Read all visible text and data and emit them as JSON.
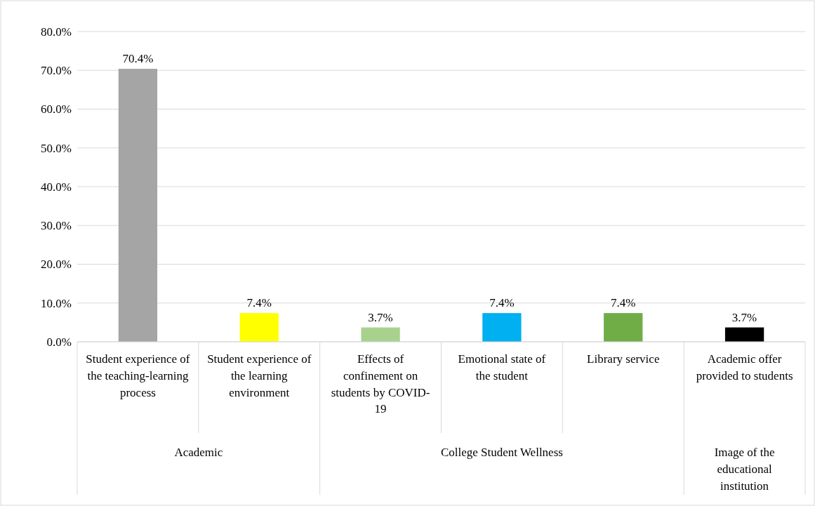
{
  "chart_data": {
    "type": "bar",
    "categories": [
      "Student experience of the teaching-learning process",
      "Student experience of the learning environment",
      "Effects of confinement on students by COVID-19",
      "Emotional state of the student",
      "Library service",
      "Academic offer provided to students"
    ],
    "values": [
      70.4,
      7.4,
      3.7,
      7.4,
      7.4,
      3.7
    ],
    "colors": [
      "#a5a5a5",
      "#ffff00",
      "#a9d18e",
      "#00b0f0",
      "#70ad47",
      "#000000"
    ],
    "value_labels": [
      "70.4%",
      "7.4%",
      "3.7%",
      "7.4%",
      "7.4%",
      "3.7%"
    ],
    "ylim": [
      0,
      80
    ],
    "yticks": [
      {
        "value": 0,
        "label": "0.0%"
      },
      {
        "value": 10,
        "label": "10.0%"
      },
      {
        "value": 20,
        "label": "20.0%"
      },
      {
        "value": 30,
        "label": "30.0%"
      },
      {
        "value": 40,
        "label": "40.0%"
      },
      {
        "value": 50,
        "label": "50.0%"
      },
      {
        "value": 60,
        "label": "60.0%"
      },
      {
        "value": 70,
        "label": "70.0%"
      },
      {
        "value": 80,
        "label": "80.0%"
      }
    ],
    "grid": "y",
    "annotations": [
      "Academic",
      "College Student Wellness",
      "Image of the educational institution"
    ]
  }
}
